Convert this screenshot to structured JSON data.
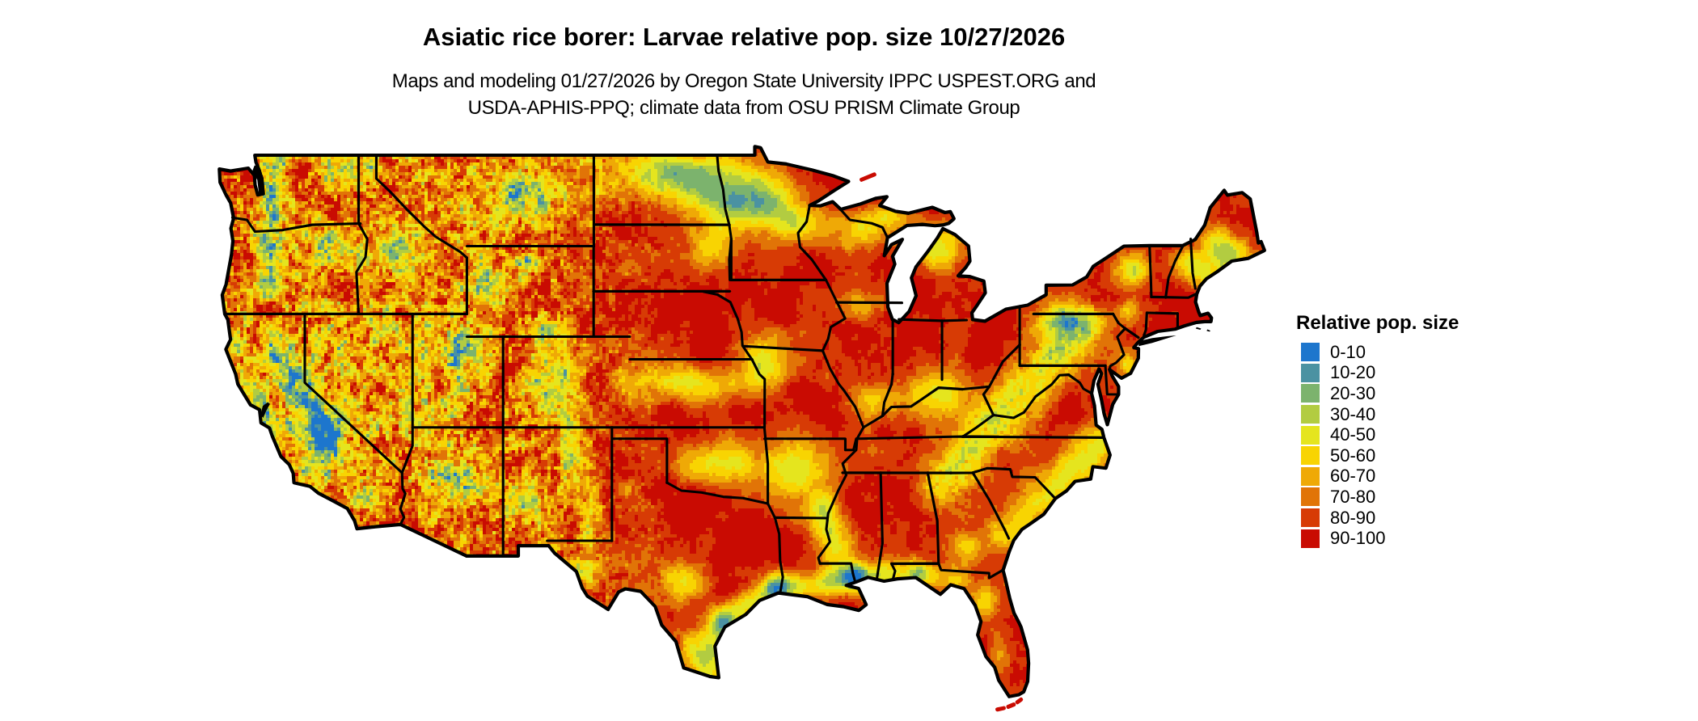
{
  "header": {
    "title": "Asiatic rice borer: Larvae relative pop. size 10/27/2026",
    "subtitle_line1": "Maps and modeling 01/27/2026 by Oregon State University IPPC USPEST.ORG and",
    "subtitle_line2": "USDA-APHIS-PPQ; climate data from OSU PRISM Climate Group"
  },
  "map": {
    "boundary_color": "#000000",
    "background_color": "#ffffff"
  },
  "legend": {
    "title": "Relative pop. size",
    "items": [
      {
        "label": "0-10",
        "color": "#1d76cd"
      },
      {
        "label": "10-20",
        "color": "#4b92a2"
      },
      {
        "label": "20-30",
        "color": "#7cb36d"
      },
      {
        "label": "30-40",
        "color": "#b2cc41"
      },
      {
        "label": "40-50",
        "color": "#e5e51e"
      },
      {
        "label": "50-60",
        "color": "#f8d402"
      },
      {
        "label": "60-70",
        "color": "#efa906"
      },
      {
        "label": "70-80",
        "color": "#e17407"
      },
      {
        "label": "80-90",
        "color": "#d73b05"
      },
      {
        "label": "90-100",
        "color": "#c90b02"
      }
    ]
  }
}
